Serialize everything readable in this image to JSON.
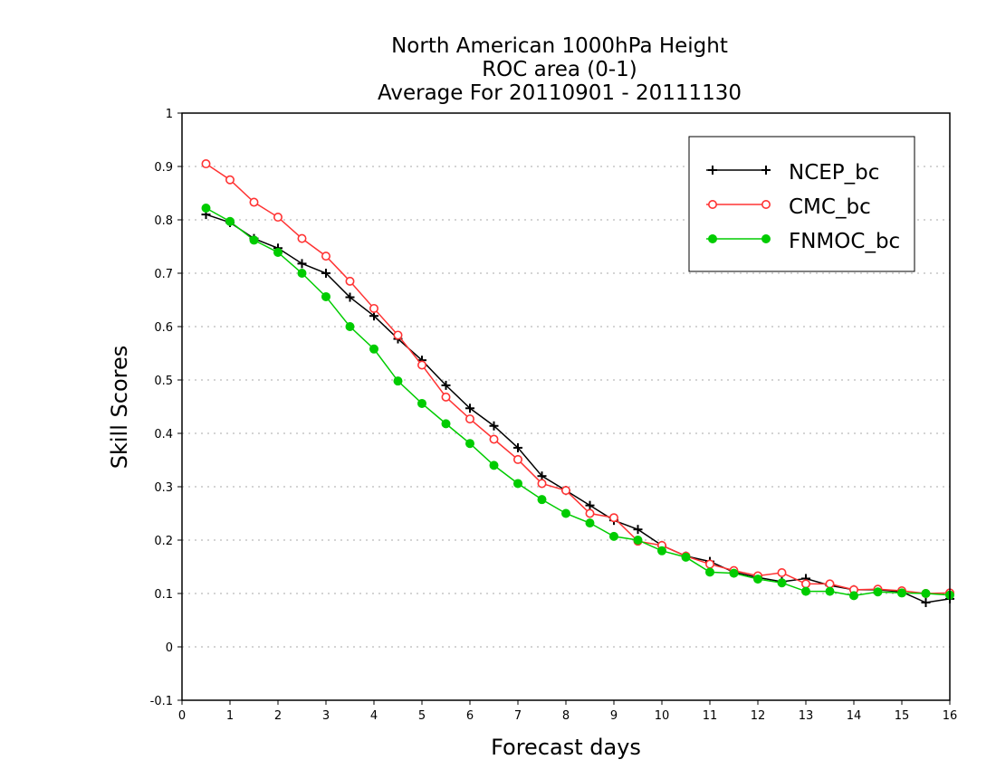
{
  "chart_data": {
    "type": "line",
    "title_lines": [
      "North American 1000hPa Height",
      "ROC area (0-1)",
      "Average For 20110901 - 20111130"
    ],
    "xlabel": "Forecast days",
    "ylabel": "Skill Scores",
    "xlim": [
      0,
      16
    ],
    "ylim": [
      -0.1,
      1
    ],
    "x_ticks": [
      0,
      1,
      2,
      3,
      4,
      5,
      6,
      7,
      8,
      9,
      10,
      11,
      12,
      13,
      14,
      15,
      16
    ],
    "y_ticks": [
      -0.1,
      0,
      0.1,
      0.2,
      0.3,
      0.4,
      0.5,
      0.6,
      0.7,
      0.8,
      0.9,
      1
    ],
    "y_tick_labels": [
      "-0.1",
      "0",
      "0.1",
      "0.2",
      "0.3",
      "0.4",
      "0.5",
      "0.6",
      "0.7",
      "0.8",
      "0.9",
      "1"
    ],
    "grid": "horizontal dotted",
    "legend_position": "top-right",
    "x": [
      0.5,
      1,
      1.5,
      2,
      2.5,
      3,
      3.5,
      4,
      4.5,
      5,
      5.5,
      6,
      6.5,
      7,
      7.5,
      8,
      8.5,
      9,
      9.5,
      10,
      10.5,
      11,
      11.5,
      12,
      12.5,
      13,
      13.5,
      14,
      14.5,
      15,
      15.5,
      16
    ],
    "series": [
      {
        "name": "NCEP_bc",
        "color": "#000000",
        "marker": "plus",
        "values": [
          0.81,
          0.795,
          0.765,
          0.747,
          0.718,
          0.7,
          0.655,
          0.62,
          0.577,
          0.537,
          0.49,
          0.447,
          0.414,
          0.373,
          0.32,
          0.293,
          0.265,
          0.237,
          0.22,
          0.19,
          0.17,
          0.16,
          0.14,
          0.13,
          0.122,
          0.128,
          0.115,
          0.107,
          0.107,
          0.103,
          0.083,
          0.09
        ]
      },
      {
        "name": "CMC_bc",
        "color": "#ff3333",
        "marker": "open-circle",
        "values": [
          0.905,
          0.875,
          0.833,
          0.805,
          0.765,
          0.732,
          0.685,
          0.634,
          0.584,
          0.528,
          0.468,
          0.427,
          0.389,
          0.351,
          0.306,
          0.293,
          0.25,
          0.242,
          0.198,
          0.19,
          0.17,
          0.155,
          0.143,
          0.133,
          0.139,
          0.118,
          0.118,
          0.107,
          0.108,
          0.105,
          0.1,
          0.101
        ]
      },
      {
        "name": "FNMOC_bc",
        "color": "#00cc00",
        "marker": "filled-circle",
        "values": [
          0.822,
          0.797,
          0.762,
          0.739,
          0.7,
          0.656,
          0.6,
          0.558,
          0.498,
          0.456,
          0.418,
          0.381,
          0.34,
          0.306,
          0.276,
          0.25,
          0.232,
          0.207,
          0.2,
          0.18,
          0.168,
          0.14,
          0.138,
          0.127,
          0.12,
          0.104,
          0.104,
          0.096,
          0.103,
          0.101,
          0.1,
          0.097
        ]
      }
    ]
  }
}
